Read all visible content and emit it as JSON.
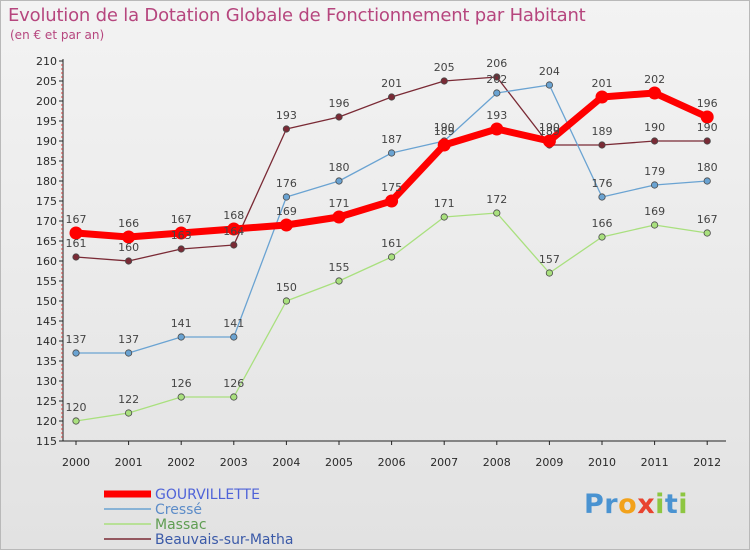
{
  "header": {
    "title": "Evolution de la Dotation Globale de Fonctionnement par Habitant",
    "subtitle": "(en € et par an)"
  },
  "logo": {
    "text": "Proxiti",
    "letters": [
      "P",
      "r",
      "o",
      "x",
      "i",
      "t",
      "i"
    ],
    "colors": [
      "#4a93d1",
      "#4a93d1",
      "#f2a21b",
      "#e8432f",
      "#8dc641",
      "#4a93d1",
      "#8dc641"
    ]
  },
  "chart_data": {
    "type": "line",
    "title": "Evolution de la Dotation Globale de Fonctionnement par Habitant",
    "subtitle": "(en € et par an)",
    "xlabel": "",
    "ylabel": "",
    "x": [
      "2000",
      "2001",
      "2002",
      "2003",
      "2004",
      "2005",
      "2006",
      "2007",
      "2008",
      "2009",
      "2010",
      "2011",
      "2012"
    ],
    "ylim": [
      115,
      210
    ],
    "yticks": [
      115,
      120,
      125,
      130,
      135,
      140,
      145,
      150,
      155,
      160,
      165,
      170,
      175,
      180,
      185,
      190,
      195,
      200,
      205,
      210
    ],
    "grid": false,
    "legend_position": "bottom-left",
    "series": [
      {
        "name": "Beauvais-sur-Matha",
        "color": "#7a2a35",
        "values": [
          161,
          160,
          163,
          164,
          193,
          196,
          201,
          205,
          206,
          189,
          189,
          190,
          190
        ]
      },
      {
        "name": "Massac",
        "color": "#a9e07e",
        "values": [
          120,
          122,
          126,
          126,
          150,
          155,
          161,
          171,
          172,
          157,
          166,
          169,
          167
        ]
      },
      {
        "name": "Cressé",
        "color": "#6aa3d2",
        "values": [
          137,
          137,
          141,
          141,
          176,
          180,
          187,
          190,
          202,
          204,
          176,
          179,
          180
        ]
      },
      {
        "name": "GOURVILLETTE",
        "color": "#ff0000",
        "values": [
          167,
          166,
          167,
          168,
          169,
          171,
          175,
          189,
          193,
          190,
          201,
          202,
          196
        ]
      }
    ],
    "legend": [
      "GOURVILLETTE",
      "Cressé",
      "Massac",
      "Beauvais-sur-Matha"
    ]
  }
}
